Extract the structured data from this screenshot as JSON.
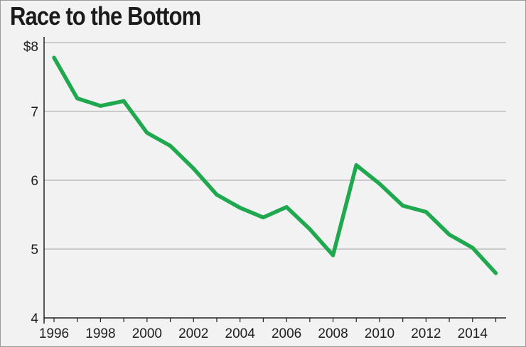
{
  "header": {
    "title": "Race to the Bottom"
  },
  "colors": {
    "line": "#1fa84d",
    "grid": "#b4b4b4",
    "axis": "#222222",
    "background": "#f2f2f3"
  },
  "chart_data": {
    "type": "line",
    "title": "Race to the Bottom",
    "xlabel": "",
    "ylabel": "",
    "x": [
      1996,
      1997,
      1998,
      1999,
      2000,
      2001,
      2002,
      2003,
      2004,
      2005,
      2006,
      2007,
      2008,
      2009,
      2010,
      2011,
      2012,
      2013,
      2014,
      2015
    ],
    "series": [
      {
        "values": [
          7.78,
          7.19,
          7.08,
          7.15,
          6.69,
          6.5,
          6.17,
          5.79,
          5.6,
          5.46,
          5.61,
          5.29,
          4.91,
          6.22,
          5.95,
          5.63,
          5.54,
          5.21,
          5.02,
          4.65
        ]
      }
    ],
    "ylim": [
      4,
      8
    ],
    "yticks": [
      {
        "value": 8,
        "label": "$8"
      },
      {
        "value": 7,
        "label": "7"
      },
      {
        "value": 6,
        "label": "6"
      },
      {
        "value": 5,
        "label": "5"
      },
      {
        "value": 4,
        "label": "4"
      }
    ],
    "xticks": [
      "1996",
      "1998",
      "2000",
      "2002",
      "2004",
      "2006",
      "2008",
      "2010",
      "2012",
      "2014"
    ],
    "grid": true,
    "legend": "none"
  }
}
